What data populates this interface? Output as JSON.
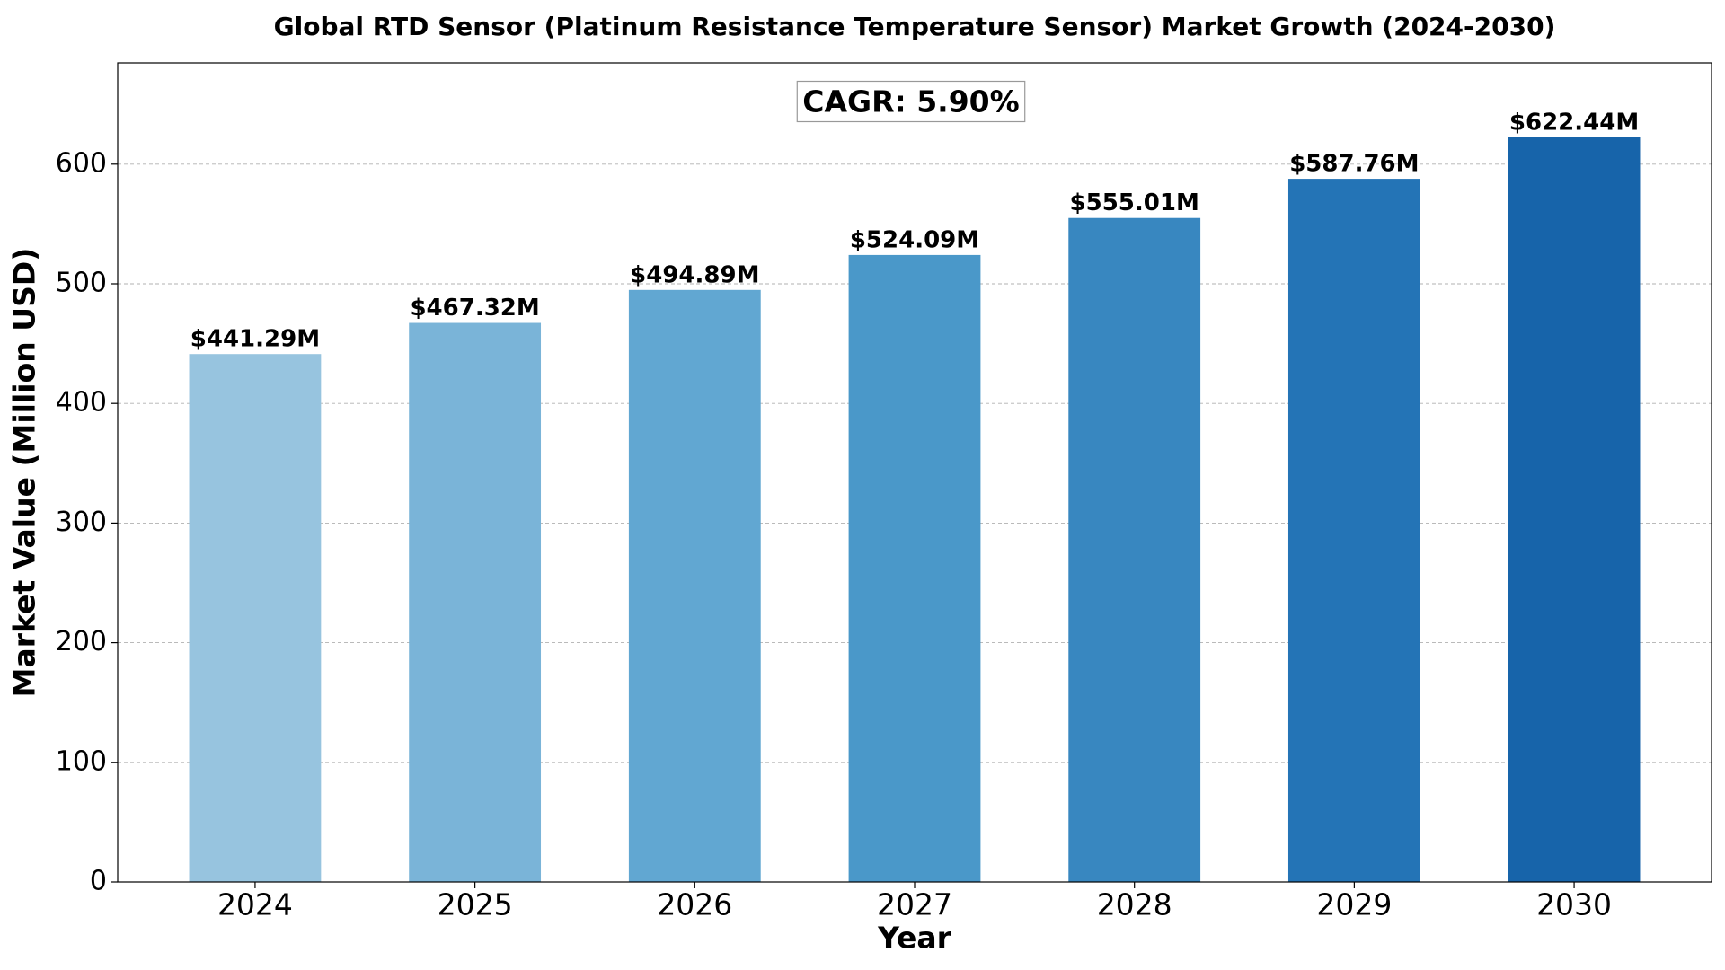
{
  "chart_data": {
    "type": "bar",
    "title": "Global RTD Sensor (Platinum Resistance Temperature Sensor) Market Growth (2024-2030)",
    "x_label": "Year",
    "y_label": "Market Value (Million USD)",
    "annotation": "CAGR: 5.90%",
    "categories": [
      "2024",
      "2025",
      "2026",
      "2027",
      "2028",
      "2029",
      "2030"
    ],
    "values": [
      441.29,
      467.32,
      494.89,
      524.09,
      555.01,
      587.76,
      622.44
    ],
    "value_labels": [
      "$441.29M",
      "$467.32M",
      "$494.89M",
      "$524.09M",
      "$555.01M",
      "$587.76M",
      "$622.44M"
    ],
    "colors": [
      "#97c4df",
      "#7ab4d8",
      "#61a7d2",
      "#4a98c9",
      "#3887c0",
      "#2474b6",
      "#1764aa"
    ],
    "ylim": [
      0,
      684.68
    ],
    "yticks": [
      0,
      100,
      200,
      300,
      400,
      500,
      600
    ],
    "grid": true
  }
}
